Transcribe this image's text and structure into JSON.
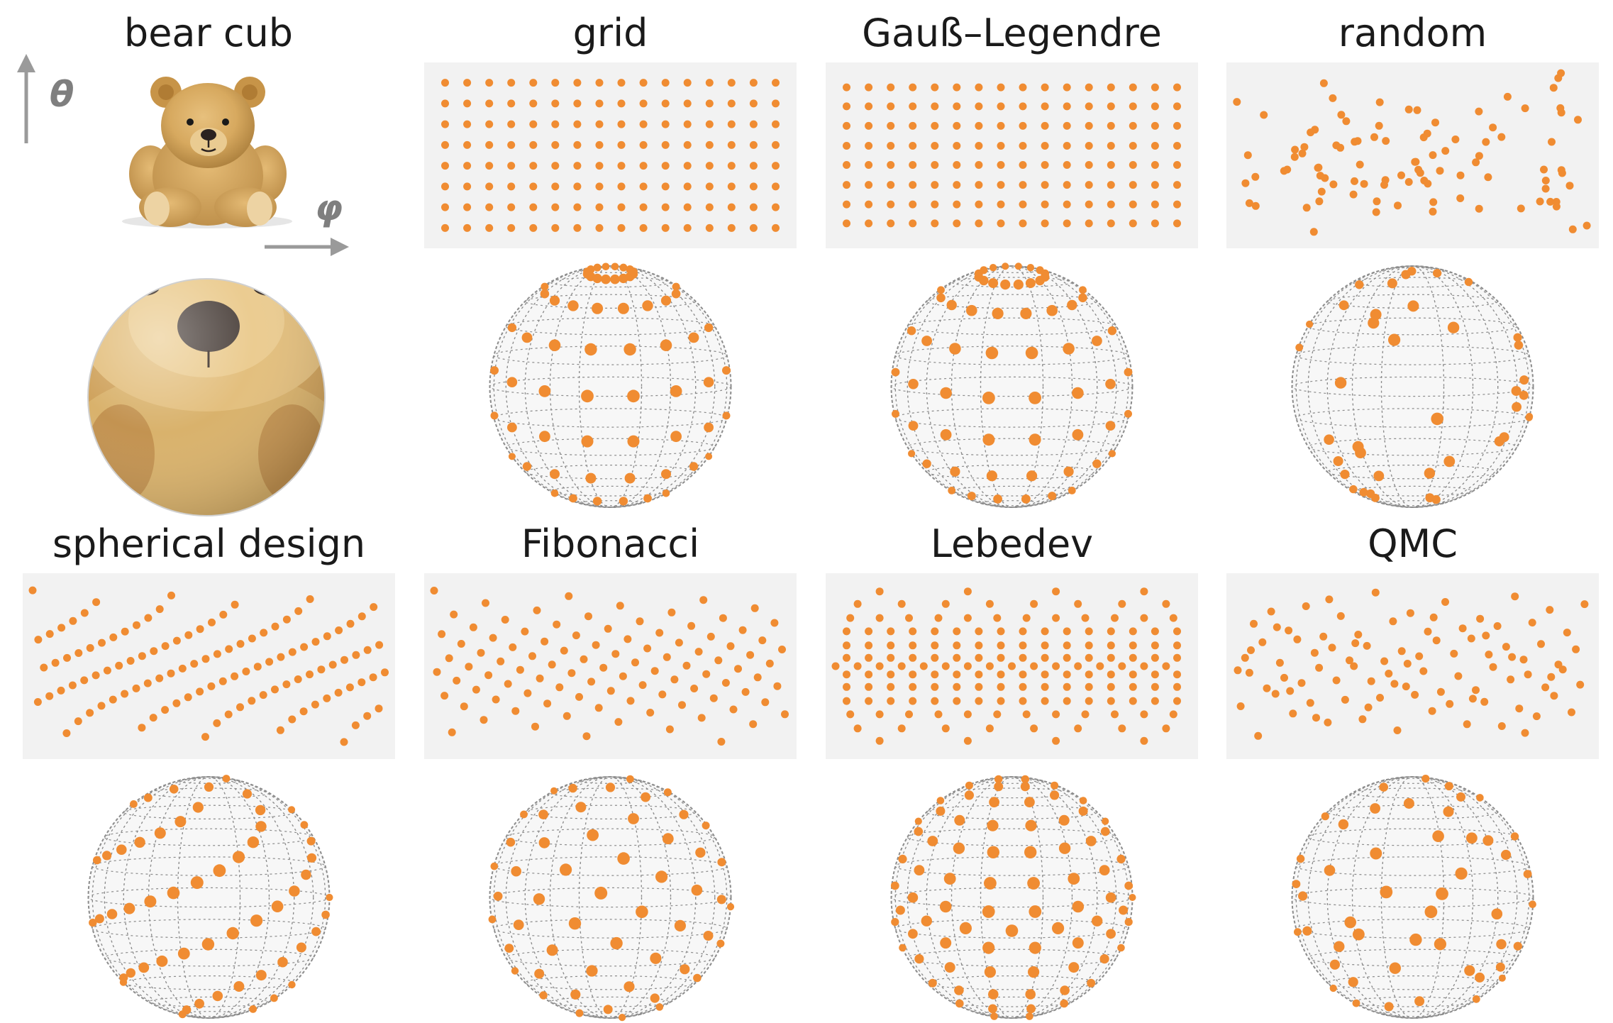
{
  "intro": {
    "title": "bear cub",
    "theta_label": "θ",
    "phi_label": "φ",
    "image_name": "teddy-bear-photo",
    "sphere_name": "teddy-bear-sphere"
  },
  "colors": {
    "point": "#f08c32",
    "panel_bg": "#f2f2f2",
    "sphere_fill": "#f7f7f7",
    "sphere_grid": "#8c8c8c",
    "arrow": "#9a9a9a",
    "title": "#1a1a1a"
  },
  "methods": [
    {
      "id": "grid",
      "title": "grid"
    },
    {
      "id": "gauss-legendre",
      "title": "Gauß–Legendre"
    },
    {
      "id": "random",
      "title": "random"
    },
    {
      "id": "spherical-design",
      "title": "spherical design"
    },
    {
      "id": "fibonacci",
      "title": "Fibonacci"
    },
    {
      "id": "lebedev",
      "title": "Lebedev"
    },
    {
      "id": "qmc",
      "title": "QMC"
    }
  ]
}
